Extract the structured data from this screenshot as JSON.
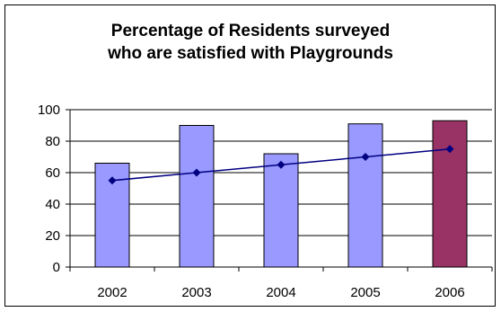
{
  "chart_data": {
    "type": "bar",
    "title_lines": [
      "Percentage of Residents surveyed",
      "who are satisfied with Playgrounds"
    ],
    "categories": [
      "2002",
      "2003",
      "2004",
      "2005",
      "2006"
    ],
    "series": [
      {
        "type": "bar",
        "values": [
          66,
          90,
          72,
          91,
          93
        ]
      },
      {
        "type": "line",
        "values": [
          55,
          60,
          65,
          70,
          75
        ]
      }
    ],
    "ylim": [
      0,
      100
    ],
    "yticks": [
      0,
      20,
      40,
      60,
      80,
      100
    ],
    "grid": true,
    "colors": {
      "bar": "#9999ff",
      "highlight_bar": "#993366",
      "line": "#000080",
      "grid": "#000000"
    }
  }
}
